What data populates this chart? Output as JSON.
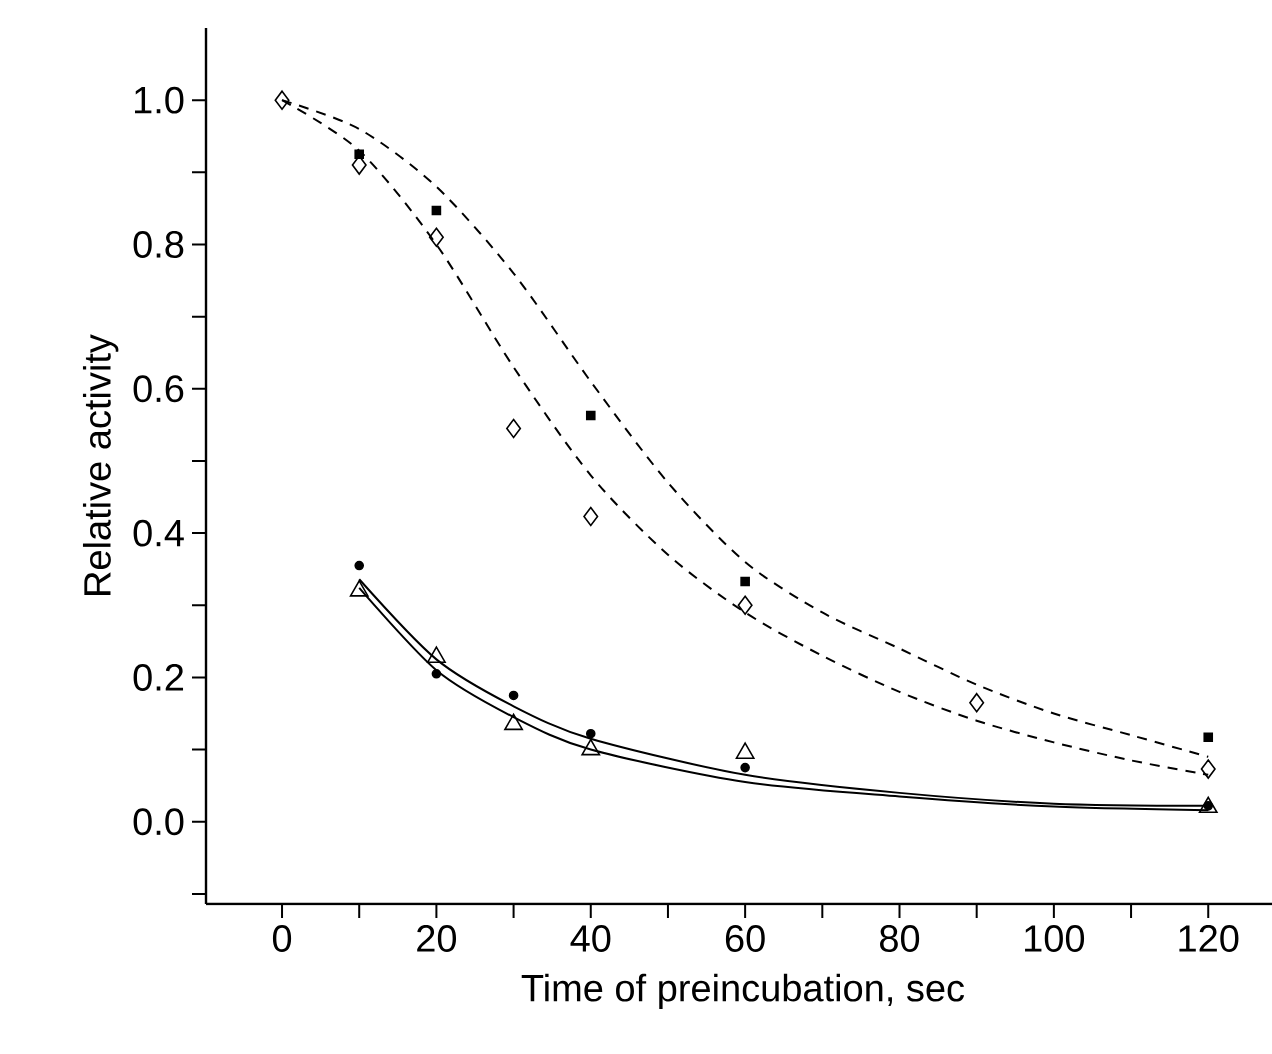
{
  "chart_data": {
    "type": "scatter",
    "xlabel": "Time of preincubation, sec",
    "ylabel": "Relative activity",
    "xlim": [
      -9.85,
      129.3
    ],
    "ylim": [
      -0.114,
      1.1
    ],
    "xticks": [
      0,
      {
        "value": 10,
        "label": null
      },
      20,
      {
        "value": 30,
        "label": null
      },
      40,
      {
        "value": 50,
        "label": null
      },
      60,
      {
        "value": 70,
        "label": null
      },
      80,
      {
        "value": 90,
        "label": null
      },
      100,
      {
        "value": 110,
        "label": null
      },
      120
    ],
    "yticks": [
      {
        "value": -0.1,
        "label": null
      },
      {
        "value": 0,
        "label": "0.0"
      },
      {
        "value": 0.1,
        "label": null
      },
      {
        "value": 0.2,
        "label": "0.2"
      },
      {
        "value": 0.3,
        "label": null
      },
      {
        "value": 0.4,
        "label": "0.4"
      },
      {
        "value": 0.5,
        "label": null
      },
      {
        "value": 0.6,
        "label": "0.6"
      },
      {
        "value": 0.7,
        "label": null
      },
      {
        "value": 0.8,
        "label": "0.8"
      },
      {
        "value": 0.9,
        "label": null
      },
      {
        "value": 1.0,
        "label": "1.0"
      }
    ],
    "grid": false,
    "series": [
      {
        "type": "line",
        "line_style": "dashed",
        "color": "#000000",
        "x": [
          0,
          10,
          20,
          30,
          40,
          50,
          60,
          70,
          80,
          90,
          100,
          110,
          120
        ],
        "values": [
          1.0,
          0.96,
          0.88,
          0.76,
          0.61,
          0.47,
          0.36,
          0.29,
          0.24,
          0.19,
          0.15,
          0.12,
          0.09
        ]
      },
      {
        "type": "line",
        "line_style": "dashed",
        "color": "#000000",
        "x": [
          0,
          10,
          20,
          30,
          40,
          50,
          60,
          70,
          80,
          90,
          100,
          110,
          120
        ],
        "values": [
          1.0,
          0.93,
          0.8,
          0.63,
          0.48,
          0.37,
          0.29,
          0.23,
          0.18,
          0.14,
          0.11,
          0.085,
          0.065
        ]
      },
      {
        "type": "line",
        "line_style": "solid",
        "color": "#000000",
        "x": [
          10,
          20,
          30,
          40,
          60,
          80,
          100,
          120
        ],
        "values": [
          0.336,
          0.225,
          0.16,
          0.115,
          0.065,
          0.04,
          0.025,
          0.022
        ]
      },
      {
        "type": "line",
        "line_style": "solid",
        "color": "#000000",
        "x": [
          10,
          20,
          30,
          40,
          60,
          80,
          100,
          120
        ],
        "values": [
          0.324,
          0.21,
          0.145,
          0.1,
          0.055,
          0.035,
          0.021,
          0.016
        ]
      },
      {
        "marker": "square",
        "color": "#000000",
        "x": [
          10,
          20,
          40,
          60,
          120
        ],
        "values": [
          0.925,
          0.847,
          0.563,
          0.333,
          0.117
        ]
      },
      {
        "marker": "diamond",
        "color": "#000000",
        "x": [
          0,
          10,
          20,
          30,
          40,
          60,
          90,
          120
        ],
        "values": [
          1.0,
          0.91,
          0.81,
          0.545,
          0.423,
          0.3,
          0.165,
          0.073
        ]
      },
      {
        "marker": "circle",
        "color": "#000000",
        "x": [
          10,
          20,
          30,
          40,
          60,
          120
        ],
        "values": [
          0.355,
          0.205,
          0.175,
          0.122,
          0.075,
          0.022
        ]
      },
      {
        "marker": "triangle",
        "color": "#000000",
        "x": [
          10,
          20,
          30,
          40,
          60,
          120
        ],
        "values": [
          0.32,
          0.228,
          0.135,
          0.1,
          0.095,
          0.02
        ]
      }
    ]
  }
}
